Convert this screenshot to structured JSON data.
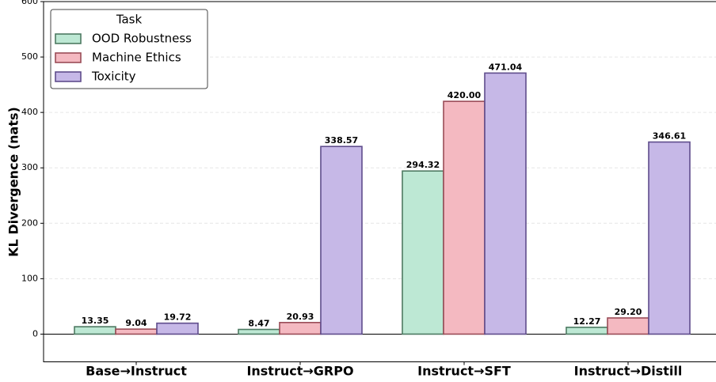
{
  "chart_data": {
    "type": "bar",
    "ylabel": "KL Divergence (nats)",
    "categories": [
      "Base→Instruct",
      "Instruct→GRPO",
      "Instruct→SFT",
      "Instruct→Distill"
    ],
    "legend_title": "Task",
    "legend_position": "upper left",
    "series": [
      {
        "name": "OOD Robustness",
        "color": "#bde8d4",
        "edgecolor": "#4d7a62",
        "values": [
          13.35,
          8.47,
          294.32,
          12.27
        ],
        "value_labels": [
          "13.35",
          "8.47",
          "294.32",
          "12.27"
        ]
      },
      {
        "name": "Machine Ethics",
        "color": "#f4b9c1",
        "edgecolor": "#9a4c57",
        "values": [
          9.04,
          20.93,
          420.0,
          29.2
        ],
        "value_labels": [
          "9.04",
          "20.93",
          "420.00",
          "29.20"
        ]
      },
      {
        "name": "Toxicity",
        "color": "#c6b8e7",
        "edgecolor": "#5f4d8c",
        "values": [
          19.72,
          338.57,
          471.04,
          346.61
        ],
        "value_labels": [
          "19.72",
          "338.57",
          "471.04",
          "346.61"
        ]
      }
    ],
    "ylim": [
      -50,
      600
    ],
    "yticks": [
      0,
      100,
      200,
      300,
      400,
      500,
      600
    ],
    "hline": 0,
    "grid": true
  }
}
